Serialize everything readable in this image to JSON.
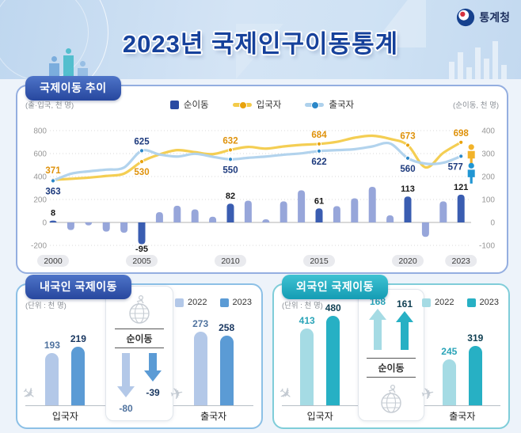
{
  "header": {
    "title": "2023년 국제인구이동통계",
    "agency": "통계청",
    "title_color": "#16419b"
  },
  "trend_panel": {
    "title": "국제이동 추이",
    "unit_left": "(출·입국, 천 명)",
    "unit_right": "(순이동, 천 명)",
    "legend": [
      {
        "label": "순이동",
        "type": "square",
        "color": "#2a4aa2"
      },
      {
        "label": "입국자",
        "type": "line",
        "color": "#f3cb4a",
        "dot": "#e8a20c"
      },
      {
        "label": "출국자",
        "type": "line",
        "color": "#aed1ec",
        "dot": "#2b87c8"
      }
    ]
  },
  "panels": {
    "domestic": {
      "title": "내국인 국제이동",
      "unit": "(단위 : 천 명)",
      "accent": "#2a4aa2"
    },
    "foreign": {
      "title": "외국인 국제이동",
      "unit": "(단위 : 천 명)",
      "accent": "#17a5ba"
    }
  },
  "icons": {
    "agency_logo": "taegeuk-circle-icon",
    "arrival": "plane-landing-icon",
    "departure": "plane-takeoff-icon",
    "traveler": "globe-runner-icon",
    "migrants_2023": [
      "person-icon-yellow",
      "person-icon-blue"
    ]
  },
  "chart_data": [
    {
      "type": "line+bar",
      "title": "국제이동 추이",
      "x": [
        2000,
        2001,
        2002,
        2003,
        2004,
        2005,
        2006,
        2007,
        2008,
        2009,
        2010,
        2011,
        2012,
        2013,
        2014,
        2015,
        2016,
        2017,
        2018,
        2019,
        2020,
        2021,
        2022,
        2023
      ],
      "x_tick_labels": [
        "2000",
        "2005",
        "2010",
        "2015",
        "2020",
        "2023"
      ],
      "highlight_years": [
        2000,
        2005,
        2010,
        2015,
        2020,
        2023
      ],
      "left_axis": {
        "label": "(출·입국, 천 명)",
        "ticks": [
          800,
          600,
          400,
          200,
          0,
          -200
        ],
        "range": [
          -200,
          800
        ]
      },
      "right_axis": {
        "label": "(순이동, 천 명)",
        "ticks": [
          400,
          300,
          200,
          100,
          0,
          -100
        ],
        "range": [
          -100,
          400
        ]
      },
      "grid": "dotted-horizontal",
      "legend_position": "top-center",
      "series": [
        {
          "name": "순이동",
          "type": "bar",
          "axis": "right",
          "color": "#97a6da",
          "color_highlight": "#3a5db1",
          "values": [
            8,
            -33,
            -13,
            -40,
            -45,
            -95,
            45,
            73,
            57,
            25,
            82,
            95,
            14,
            92,
            140,
            61,
            71,
            105,
            155,
            31,
            113,
            -63,
            92,
            121
          ],
          "labels": [
            {
              "year": 2000,
              "value": 8
            },
            {
              "year": 2005,
              "value": -95
            },
            {
              "year": 2010,
              "value": 82
            },
            {
              "year": 2015,
              "value": 61
            },
            {
              "year": 2020,
              "value": 113
            },
            {
              "year": 2023,
              "value": 121
            }
          ]
        },
        {
          "name": "입국자",
          "type": "line",
          "axis": "left",
          "color": "#f3cb4a",
          "dot_color": "#e8a20c",
          "label_color": "#df920b",
          "values": [
            371,
            380,
            390,
            405,
            425,
            530,
            592,
            630,
            612,
            595,
            632,
            658,
            643,
            662,
            676,
            684,
            702,
            738,
            755,
            728,
            673,
            480,
            606,
            698
          ],
          "labels": [
            {
              "year": 2000,
              "value": 371,
              "pos": "above"
            },
            {
              "year": 2005,
              "value": 530,
              "pos": "below"
            },
            {
              "year": 2010,
              "value": 632,
              "pos": "above"
            },
            {
              "year": 2015,
              "value": 684,
              "pos": "above"
            },
            {
              "year": 2020,
              "value": 673,
              "pos": "above"
            },
            {
              "year": 2023,
              "value": 698,
              "pos": "above"
            }
          ]
        },
        {
          "name": "출국자",
          "type": "line",
          "axis": "left",
          "color": "#aed1ec",
          "dot_color": "#2b87c8",
          "label_color": "#1d3a7d",
          "values": [
            363,
            424,
            445,
            460,
            478,
            625,
            592,
            574,
            598,
            572,
            550,
            563,
            574,
            590,
            602,
            622,
            630,
            638,
            662,
            688,
            560,
            512,
            520,
            577
          ],
          "labels": [
            {
              "year": 2000,
              "value": 363,
              "pos": "below"
            },
            {
              "year": 2005,
              "value": 625,
              "pos": "above"
            },
            {
              "year": 2010,
              "value": 550,
              "pos": "below"
            },
            {
              "year": 2015,
              "value": 622,
              "pos": "below"
            },
            {
              "year": 2020,
              "value": 560,
              "pos": "below"
            },
            {
              "year": 2023,
              "value": 577,
              "pos": "below"
            }
          ]
        }
      ],
      "annotations": {
        "person_icons_year": 2023,
        "note": "unlabeled yearly values estimated from chart"
      }
    },
    {
      "type": "bar",
      "title": "내국인 국제이동",
      "unit": "(단위 : 천 명)",
      "categories": [
        "입국자",
        "출국자"
      ],
      "series": [
        {
          "name": "2022",
          "color": "#b3c8e8",
          "values": [
            193,
            273
          ]
        },
        {
          "name": "2023",
          "color": "#5b9bd5",
          "values": [
            219,
            258
          ]
        }
      ],
      "net": {
        "label": "순이동",
        "direction": "down",
        "values": [
          -80,
          -39
        ]
      }
    },
    {
      "type": "bar",
      "title": "외국인 국제이동",
      "unit": "(단위 : 천 명)",
      "categories": [
        "입국자",
        "출국자"
      ],
      "series": [
        {
          "name": "2022",
          "color": "#a5dbe4",
          "values": [
            413,
            245
          ]
        },
        {
          "name": "2023",
          "color": "#27b0c4",
          "values": [
            480,
            319
          ]
        }
      ],
      "net": {
        "label": "순이동",
        "direction": "up",
        "values": [
          168,
          161
        ]
      }
    }
  ]
}
